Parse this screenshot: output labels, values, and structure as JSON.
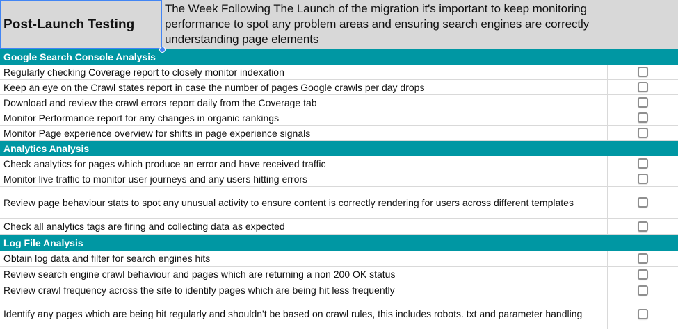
{
  "header": {
    "title": "Post-Launch Testing",
    "description": "The Week Following The Launch of the migration it's important to keep monitoring performance to spot any problem areas and ensuring search engines are correctly understanding page elements"
  },
  "colors": {
    "teal": "#0097a3",
    "band-gray": "#d8d8d8",
    "selection-blue": "#4285f4",
    "grid-line": "#d9d9d9",
    "checkbox-border": "#8f8f8f"
  },
  "sections": [
    {
      "title": "Google Search Console Analysis",
      "items": [
        {
          "text": "Regularly checking Coverage report to closely monitor indexation",
          "checked": false
        },
        {
          "text": "Keep an eye on the Crawl states report in case the number of pages Google crawls per day drops",
          "checked": false
        },
        {
          "text": "Download and review the crawl errors report daily from the Coverage tab",
          "checked": false
        },
        {
          "text": "Monitor Performance report for any changes in organic rankings",
          "checked": false
        },
        {
          "text": "Monitor Page experience overview for shifts in page experience signals",
          "checked": false
        }
      ]
    },
    {
      "title": "Analytics Analysis",
      "items": [
        {
          "text": "Check analytics for pages which produce an error and have received traffic",
          "checked": false
        },
        {
          "text": "Monitor live traffic to monitor user journeys and any users hitting errors",
          "checked": false
        },
        {
          "text": "Review page behaviour stats to spot any unusual activity to ensure content is correctly rendering for users across different templates",
          "checked": false
        },
        {
          "text": "Check all analytics tags are firing and collecting data as expected",
          "checked": false
        }
      ]
    },
    {
      "title": "Log File Analysis",
      "items": [
        {
          "text": "Obtain log data and filter for search engines hits",
          "checked": false
        },
        {
          "text": "Review search engine crawl behaviour and pages which are returning a non 200 OK status",
          "checked": false
        },
        {
          "text": "Review crawl frequency across the site to identify pages which are being hit less frequently",
          "checked": false
        },
        {
          "text": "Identify any pages which are being hit regularly and shouldn't be based on crawl rules, this includes robots. txt and parameter handling",
          "checked": false
        }
      ]
    }
  ]
}
